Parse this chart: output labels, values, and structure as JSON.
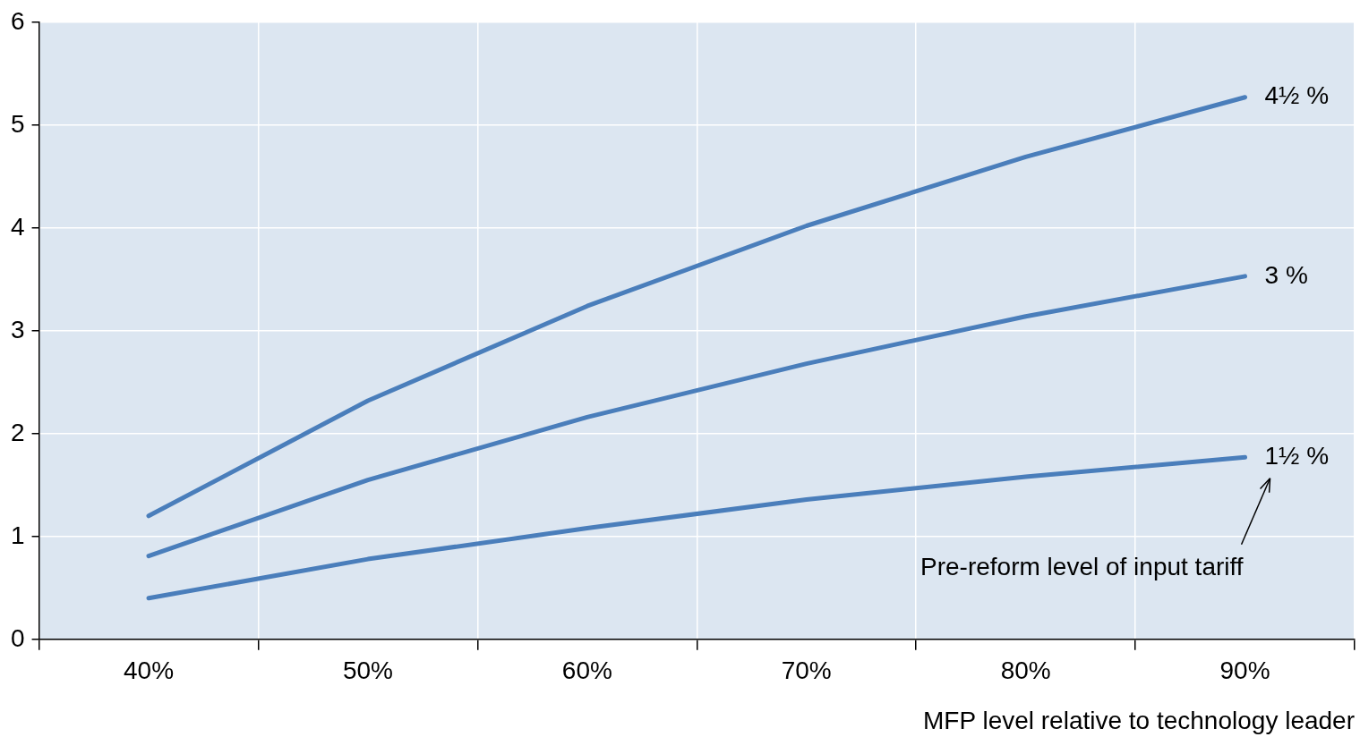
{
  "chart_data": {
    "type": "line",
    "xlabel": "MFP level relative to technology leader",
    "categories": [
      "40%",
      "50%",
      "60%",
      "70%",
      "80%",
      "90%"
    ],
    "series": [
      {
        "name": "4½ %",
        "color": "#4a7ebb",
        "values": [
          1.2,
          2.32,
          3.24,
          4.02,
          4.69,
          5.27
        ]
      },
      {
        "name": "3 %",
        "color": "#4a7ebb",
        "values": [
          0.81,
          1.55,
          2.16,
          2.68,
          3.14,
          3.53
        ]
      },
      {
        "name": "1½ %",
        "color": "#4a7ebb",
        "values": [
          0.4,
          0.78,
          1.08,
          1.36,
          1.58,
          1.77
        ]
      }
    ],
    "ylim": [
      0,
      6
    ],
    "yticks": [
      0,
      1,
      2,
      3,
      4,
      5,
      6
    ],
    "grid": true,
    "legend": false,
    "marker": "none",
    "line_style": "solid",
    "annotations": [
      "Pre-reform level of input tariff"
    ]
  }
}
